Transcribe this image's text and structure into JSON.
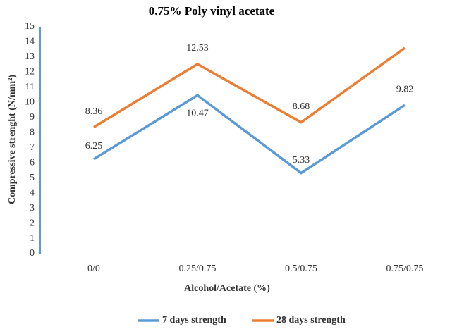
{
  "chart_data": {
    "type": "line",
    "title": "0.75% Poly vinyl acetate",
    "x_label": "Alcohol/Acetate (%)",
    "y_label": "Compressive strenght (N/mm²)",
    "categories": [
      "0/0",
      "0.25/0.75",
      "0.5/0.75",
      "0.75/0.75"
    ],
    "series": [
      {
        "name": "7 days strength",
        "color": "#5b9bd5",
        "values": [
          6.25,
          10.47,
          5.33,
          9.82
        ]
      },
      {
        "name": "28 days strength",
        "color": "#ed7d31",
        "values": [
          8.36,
          12.53,
          8.68,
          13.6
        ],
        "value_labels": [
          "8.36",
          "12.53",
          "8.68",
          null
        ]
      }
    ],
    "ylim": [
      0,
      15
    ],
    "yticks": [
      0,
      1,
      2,
      3,
      4,
      5,
      6,
      7,
      8,
      9,
      10,
      11,
      12,
      13,
      14,
      15
    ],
    "legend": "bottom",
    "grid": false
  }
}
